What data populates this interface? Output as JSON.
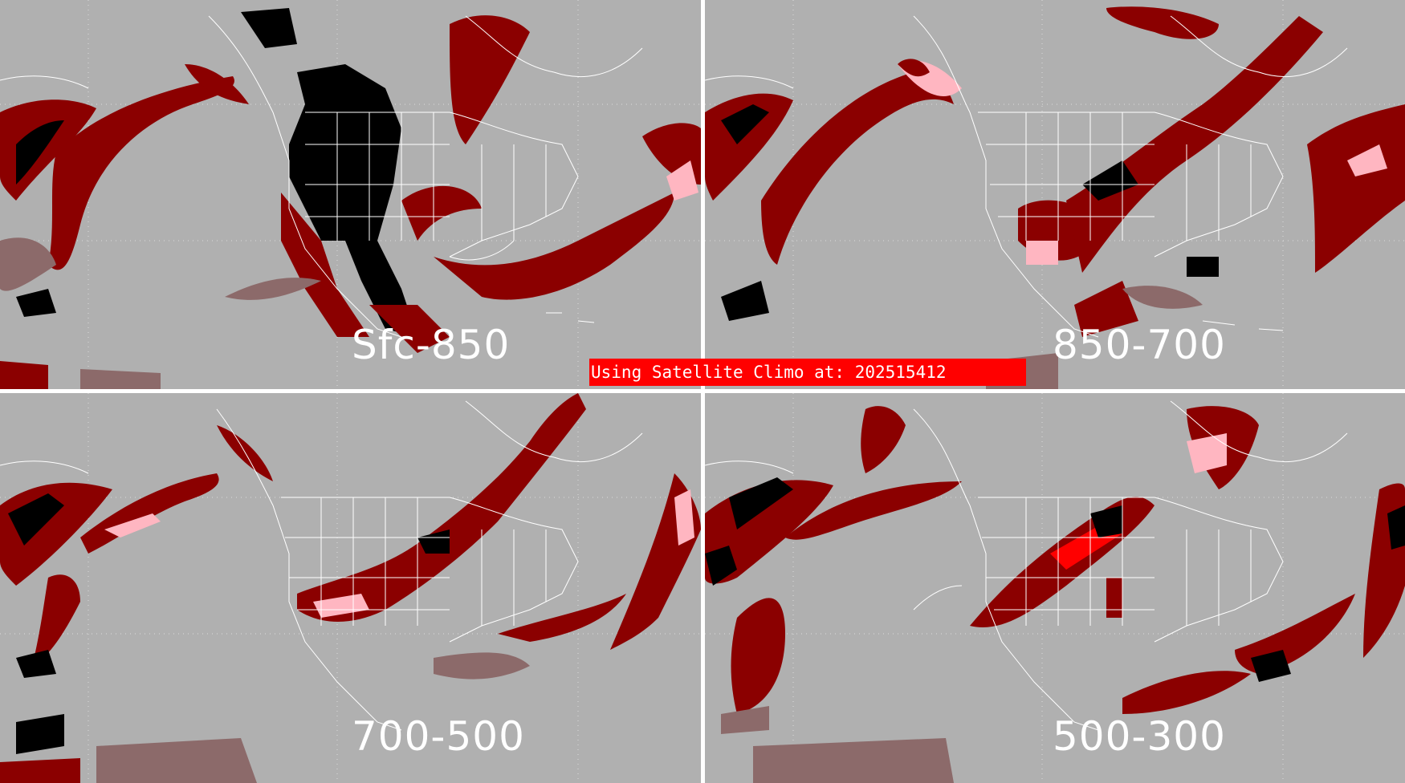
{
  "colors": {
    "background": "#b0b0b0",
    "divider": "#ffffff",
    "low": "#8c6a6a",
    "mid": "#8b0000",
    "high": "#ffb6c1",
    "very_high": "#ff0000",
    "extreme": "#000000",
    "outlines": "#ffffff",
    "banner": "#ff0000"
  },
  "panels": [
    {
      "label": "Sfc-850"
    },
    {
      "label": "850-700"
    },
    {
      "label": "700-500"
    },
    {
      "label": "500-300"
    }
  ],
  "banner": {
    "text": "Using Satellite Climo at: 202515412"
  }
}
